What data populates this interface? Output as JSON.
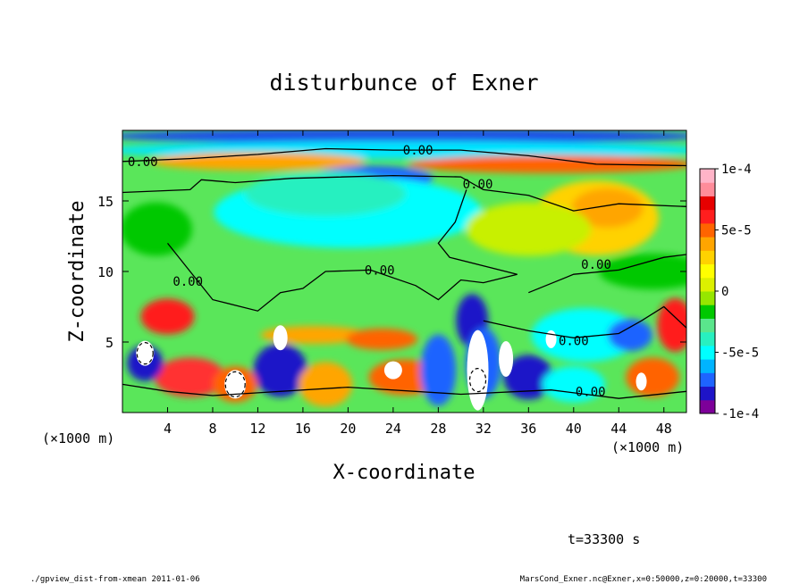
{
  "chart_data": {
    "type": "heatmap",
    "title": "disturbunce of Exner",
    "xlabel": "X-coordinate",
    "ylabel": "Z-coordinate",
    "x_unit": "(×1000 m)",
    "y_unit": "(×1000 m)",
    "xlim": [
      0,
      50
    ],
    "ylim": [
      0,
      20
    ],
    "x_ticks": [
      4,
      8,
      12,
      16,
      20,
      24,
      28,
      32,
      36,
      40,
      44,
      48
    ],
    "x_tick_labels": [
      "4",
      "8",
      "12",
      "16",
      "20",
      "24",
      "28",
      "32",
      "36",
      "40",
      "44",
      "48"
    ],
    "y_ticks": [
      5,
      10,
      15
    ],
    "y_tick_labels": [
      "5",
      "10",
      "15"
    ],
    "colorbar": {
      "range": [
        -0.0001,
        0.0001
      ],
      "labels": [
        "1e-4",
        "5e-5",
        "0",
        "-5e-5",
        "-1e-4"
      ],
      "label_values": [
        0.0001,
        5e-05,
        0,
        -5e-05,
        -0.0001
      ],
      "colors": [
        "#7d0099",
        "#1e14c8",
        "#1e64ff",
        "#00b4ff",
        "#00ffff",
        "#28f0c0",
        "#5ae68c",
        "#00c800",
        "#96e600",
        "#dcf000",
        "#ffff00",
        "#ffd200",
        "#ffa500",
        "#ff6400",
        "#ff1e1e",
        "#e60000",
        "#ff8c9a",
        "#ffb4c8"
      ]
    },
    "contour_labels": [
      {
        "text": "0.00",
        "x": 1.8,
        "z": 17.8
      },
      {
        "text": "0.00",
        "x": 26.2,
        "z": 18.6
      },
      {
        "text": "0.00",
        "x": 31.5,
        "z": 16.2
      },
      {
        "text": "0.00",
        "x": 5.8,
        "z": 9.3
      },
      {
        "text": "0.00",
        "x": 22.8,
        "z": 10.1
      },
      {
        "text": "0.00",
        "x": 42.0,
        "z": 10.5
      },
      {
        "text": "0.00",
        "x": 40.0,
        "z": 5.1
      },
      {
        "text": "0.00",
        "x": 41.5,
        "z": 1.5
      }
    ],
    "time_label": "t=33300 s"
  },
  "footer": {
    "left": "./gpview_dist-from-xmean  2011-01-06",
    "right": "MarsCond_Exner.nc@Exner,x=0:50000,z=0:20000,t=33300"
  }
}
